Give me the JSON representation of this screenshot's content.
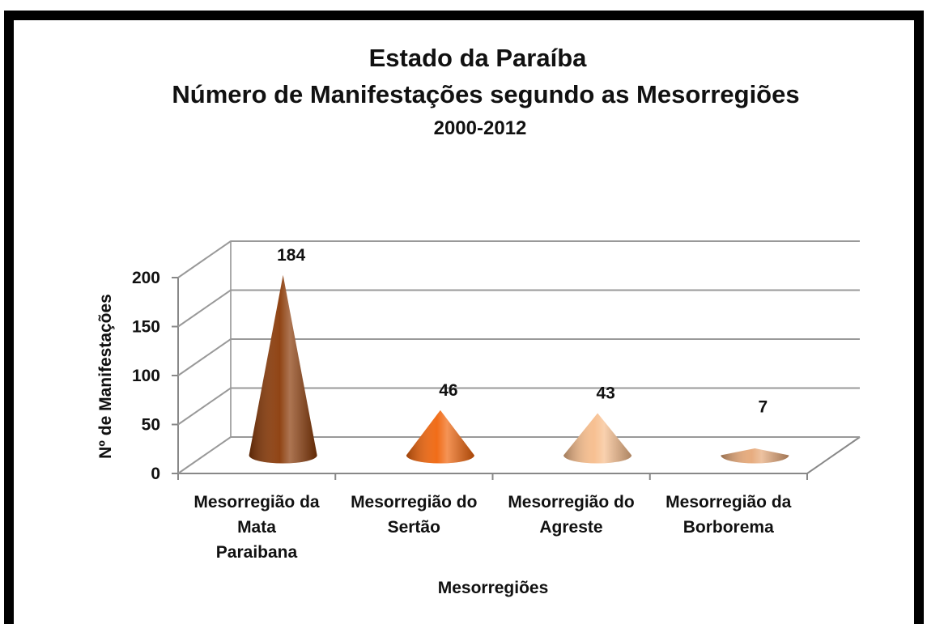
{
  "chart_data": {
    "type": "cone",
    "title": [
      "Estado da Paraíba",
      "Número de Manifestações segundo as Mesorregiões",
      "2000-2012"
    ],
    "x_label": "Mesorregiões",
    "y_label": "Nº de Manifestações",
    "categories": [
      "Mesorregião da\nMata\nParaibana",
      "Mesorregião do\nSertão",
      "Mesorregião do\nAgreste",
      "Mesorregião da\nBorborema"
    ],
    "values": [
      184,
      46,
      43,
      7
    ],
    "colors": [
      "#8a3a08",
      "#f0650c",
      "#f7bd8c",
      "#e6a878"
    ],
    "ylim": [
      0,
      200
    ],
    "yticks": [
      0,
      50,
      100,
      150,
      200
    ],
    "grid": true
  }
}
